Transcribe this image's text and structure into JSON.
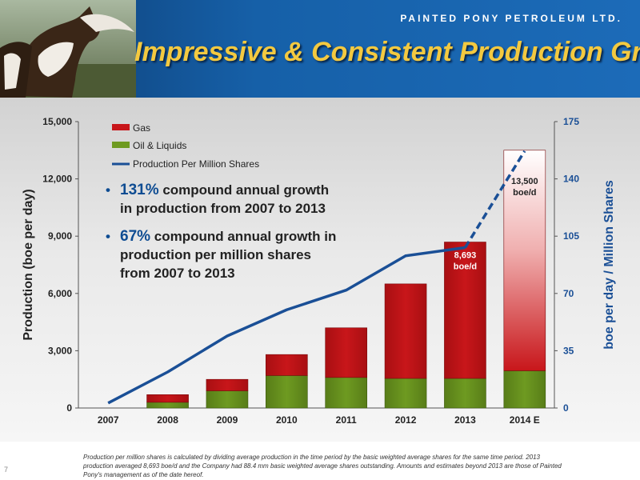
{
  "header": {
    "company": "PAINTED PONY PETROLEUM LTD.",
    "title": "Impressive & Consistent Production Growth"
  },
  "bullets": [
    {
      "highlight": "131%",
      "text": " compound annual growth in production from 2007 to 2013"
    },
    {
      "highlight": "67%",
      "text": " compound annual growth in production per million shares from 2007 to 2013"
    }
  ],
  "footnote": "Production per million shares is calculated by dividing average production in the time period by the basic weighted average shares for the same time period. 2013 production averaged 8,693 boe/d and the Company had 88.4 mm basic weighted average shares outstanding. Amounts and estimates beyond 2013 are those of Painted Pony's management as of the date hereof.",
  "page_number": "7",
  "colors": {
    "gas": "#c8161a",
    "oil": "#6e9a21",
    "line": "#1a4f96"
  },
  "chart_data": {
    "type": "bar",
    "categories": [
      "2007",
      "2008",
      "2009",
      "2010",
      "2011",
      "2012",
      "2013",
      "2014 E"
    ],
    "series": [
      {
        "name": "Oil & Liquids",
        "kind": "bar",
        "values": [
          0,
          300,
          900,
          1700,
          1600,
          1550,
          1550,
          1950
        ]
      },
      {
        "name": "Gas",
        "kind": "bar",
        "values": [
          0,
          400,
          600,
          1100,
          2600,
          4950,
          7143,
          11550
        ]
      },
      {
        "name": "Production Per Million Shares",
        "kind": "line",
        "axis": "right",
        "values": [
          3,
          22,
          44,
          60,
          72,
          93,
          98,
          157
        ],
        "projected_from": "2013"
      }
    ],
    "ylabel": "Production (boe per day)",
    "y2label": "boe per day / Million Shares",
    "ylim": [
      0,
      15000
    ],
    "y2lim": [
      0,
      175
    ],
    "yticks": [
      "0",
      "3,000",
      "6,000",
      "9,000",
      "12,000",
      "15,000"
    ],
    "y2ticks": [
      "0",
      "35",
      "70",
      "105",
      "140",
      "175"
    ],
    "annotations": [
      {
        "category": "2013",
        "lines": [
          "8,693",
          "boe/d"
        ]
      },
      {
        "category": "2014 E",
        "lines": [
          "13,500",
          "boe/d"
        ]
      }
    ],
    "legend_position": "top-left"
  }
}
